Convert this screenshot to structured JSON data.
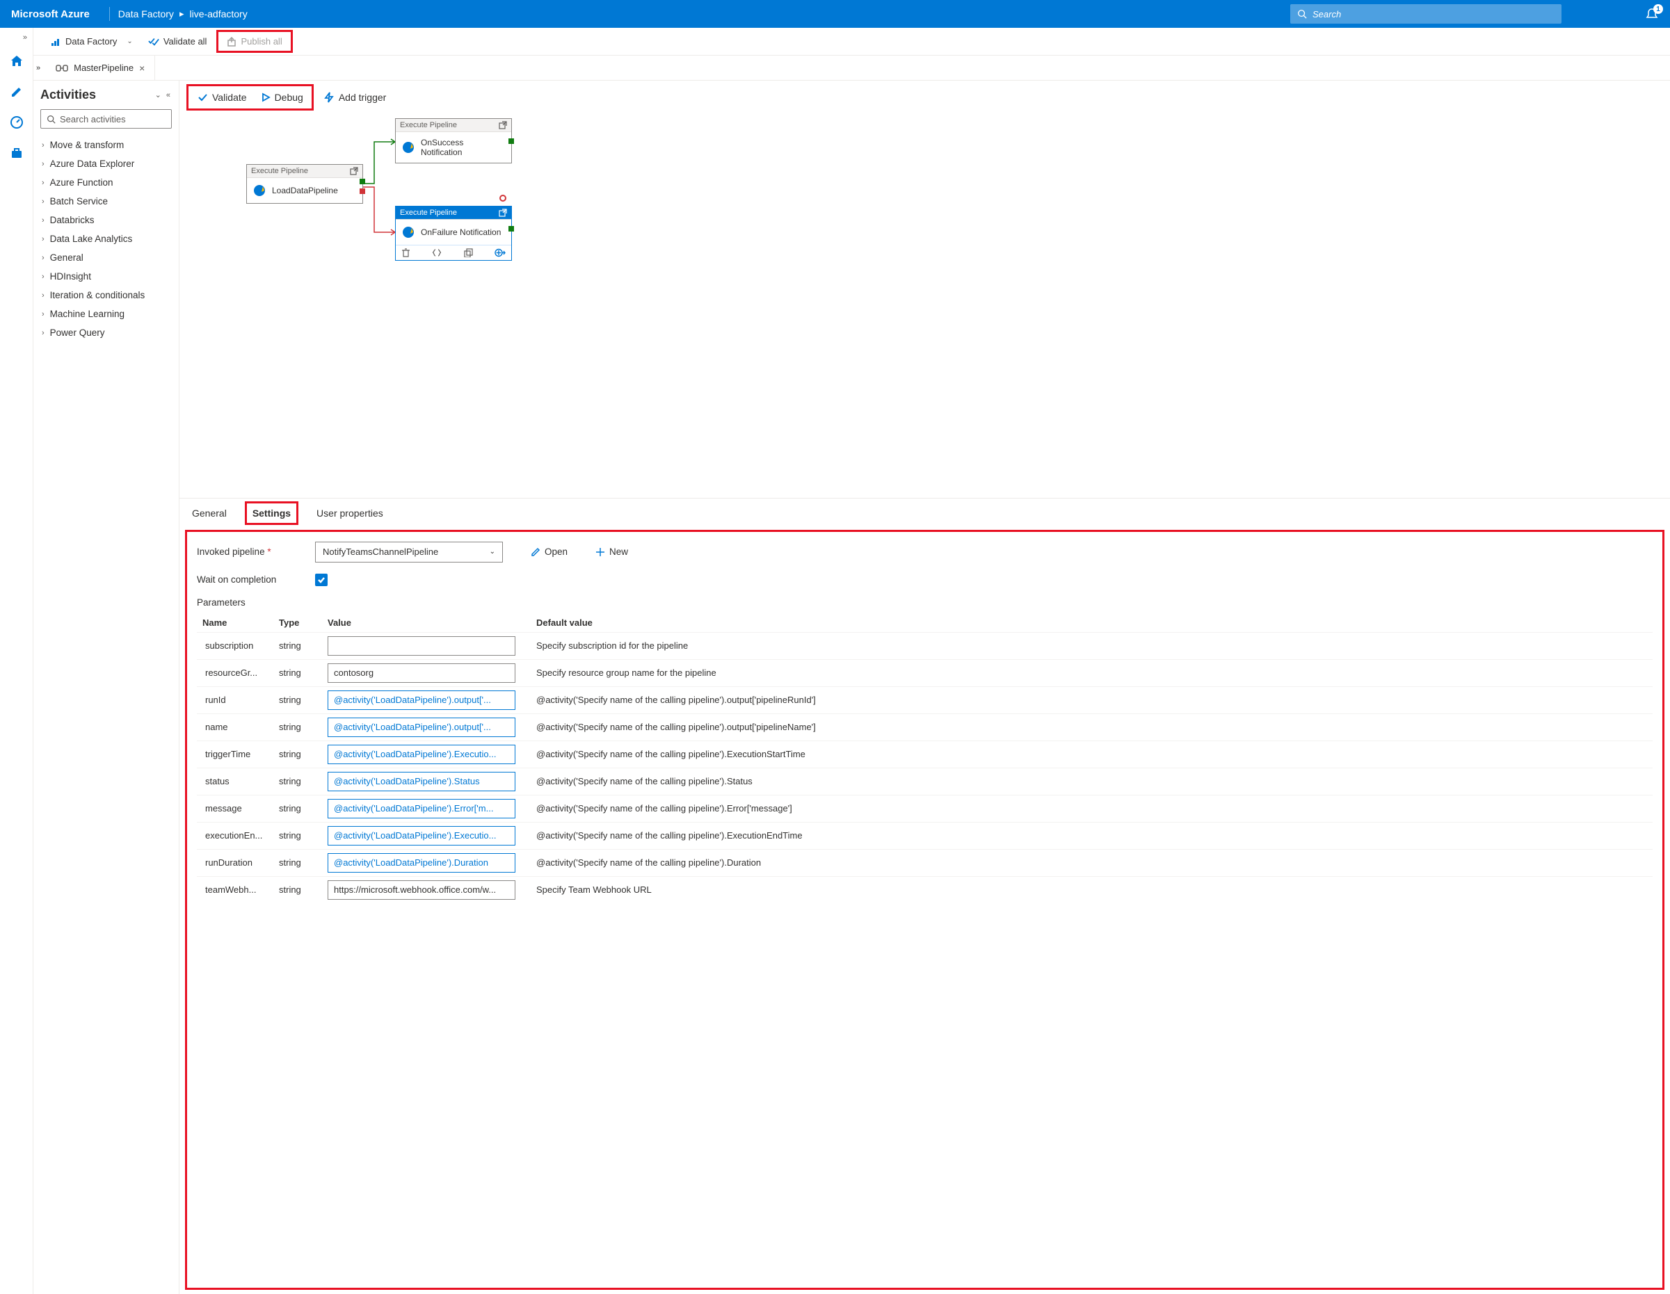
{
  "header": {
    "brand": "Microsoft Azure",
    "breadcrumb": [
      "Data Factory",
      "live-adfactory"
    ],
    "search_placeholder": "Search",
    "notification_count": "1"
  },
  "toolbar": {
    "factory_label": "Data Factory",
    "validate_all": "Validate all",
    "publish_all": "Publish all"
  },
  "tab": {
    "title": "MasterPipeline"
  },
  "activities": {
    "title": "Activities",
    "search_placeholder": "Search activities",
    "items": [
      "Move & transform",
      "Azure Data Explorer",
      "Azure Function",
      "Batch Service",
      "Databricks",
      "Data Lake Analytics",
      "General",
      "HDInsight",
      "Iteration & conditionals",
      "Machine Learning",
      "Power Query"
    ]
  },
  "canvas_toolbar": {
    "validate": "Validate",
    "debug": "Debug",
    "add_trigger": "Add trigger"
  },
  "nodes": {
    "load": {
      "type": "Execute Pipeline",
      "title": "LoadDataPipeline"
    },
    "success": {
      "type": "Execute Pipeline",
      "title": "OnSuccess Notification"
    },
    "failure": {
      "type": "Execute Pipeline",
      "title": "OnFailure Notification"
    }
  },
  "prop_tabs": {
    "general": "General",
    "settings": "Settings",
    "user_props": "User properties"
  },
  "settings": {
    "invoked_label": "Invoked pipeline",
    "invoked_value": "NotifyTeamsChannelPipeline",
    "open": "Open",
    "new": "New",
    "wait_label": "Wait on completion",
    "params_label": "Parameters",
    "columns": {
      "name": "Name",
      "type": "Type",
      "value": "Value",
      "default": "Default value"
    },
    "rows": [
      {
        "name": "subscription",
        "type": "string",
        "value": "",
        "expr": false,
        "default": "Specify subscription id for the pipeline"
      },
      {
        "name": "resourceGr...",
        "type": "string",
        "value": "contosorg",
        "expr": false,
        "default": "Specify resource group name for the pipeline"
      },
      {
        "name": "runId",
        "type": "string",
        "value": "@activity('LoadDataPipeline').output['...",
        "expr": true,
        "default": "@activity('Specify name of the calling pipeline').output['pipelineRunId']"
      },
      {
        "name": "name",
        "type": "string",
        "value": "@activity('LoadDataPipeline').output['...",
        "expr": true,
        "default": "@activity('Specify name of the calling pipeline').output['pipelineName']"
      },
      {
        "name": "triggerTime",
        "type": "string",
        "value": "@activity('LoadDataPipeline').Executio...",
        "expr": true,
        "default": "@activity('Specify name of the calling pipeline').ExecutionStartTime"
      },
      {
        "name": "status",
        "type": "string",
        "value": "@activity('LoadDataPipeline').Status",
        "expr": true,
        "default": "@activity('Specify name of the calling pipeline').Status"
      },
      {
        "name": "message",
        "type": "string",
        "value": "@activity('LoadDataPipeline').Error['m...",
        "expr": true,
        "default": "@activity('Specify name of the calling pipeline').Error['message']"
      },
      {
        "name": "executionEn...",
        "type": "string",
        "value": "@activity('LoadDataPipeline').Executio...",
        "expr": true,
        "default": "@activity('Specify name of the calling pipeline').ExecutionEndTime"
      },
      {
        "name": "runDuration",
        "type": "string",
        "value": "@activity('LoadDataPipeline').Duration",
        "expr": true,
        "default": "@activity('Specify name of the calling pipeline').Duration"
      },
      {
        "name": "teamWebh...",
        "type": "string",
        "value": "https://microsoft.webhook.office.com/w...",
        "expr": false,
        "default": "Specify Team Webhook URL"
      }
    ]
  },
  "colors": {
    "primary": "#0078d4",
    "highlight_border": "#e81123",
    "success": "#107c10",
    "failure": "#d13438"
  }
}
